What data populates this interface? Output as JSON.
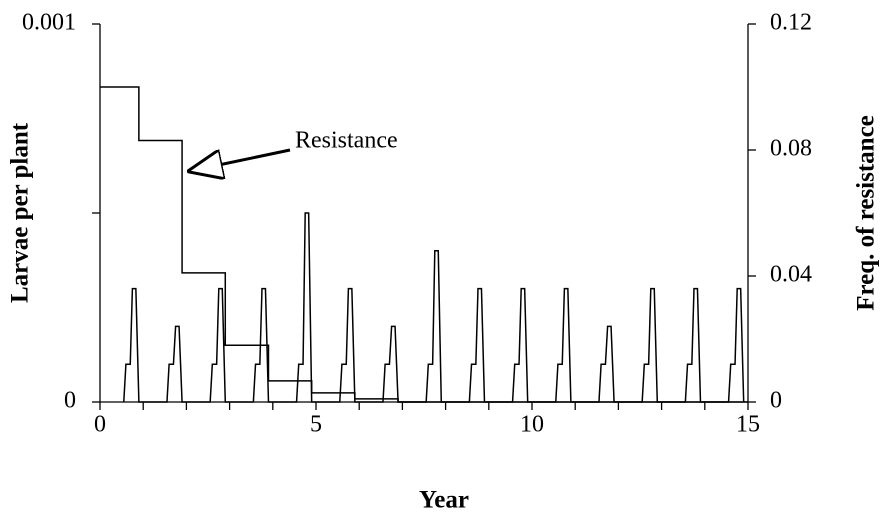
{
  "chart_data": {
    "type": "line",
    "xlabel": "Year",
    "ylabel": "Larvae per plant",
    "y2label": "Freq. of resistance",
    "annotation": "Resistance",
    "xlim": [
      0,
      15
    ],
    "xticks": [
      0,
      5,
      10,
      15
    ],
    "xminorticks": [
      1,
      2,
      3,
      4,
      6,
      7,
      8,
      9,
      11,
      12,
      13,
      14
    ],
    "ylim": [
      0,
      0.001
    ],
    "yticks": [
      0,
      0.001
    ],
    "yminorticks": [
      0.0005
    ],
    "y2lim": [
      0,
      0.12
    ],
    "y2ticks": [
      0,
      0.04,
      0.08,
      0.12
    ],
    "series": [
      {
        "color": "#000000",
        "axis": "y",
        "x": [
          0.55,
          0.6,
          0.7,
          0.75,
          0.83,
          0.9,
          1.55,
          1.6,
          1.7,
          1.75,
          1.83,
          1.9,
          2.55,
          2.6,
          2.7,
          2.75,
          2.83,
          2.9,
          3.55,
          3.6,
          3.7,
          3.75,
          3.83,
          3.9,
          4.55,
          4.6,
          4.7,
          4.75,
          4.83,
          4.9,
          5.55,
          5.6,
          5.7,
          5.75,
          5.83,
          5.9,
          6.55,
          6.6,
          6.7,
          6.75,
          6.83,
          6.9,
          7.55,
          7.6,
          7.7,
          7.75,
          7.83,
          7.9,
          8.55,
          8.6,
          8.7,
          8.75,
          8.83,
          8.9,
          9.55,
          9.6,
          9.7,
          9.75,
          9.83,
          9.9,
          10.55,
          10.6,
          10.7,
          10.75,
          10.83,
          10.9,
          11.55,
          11.6,
          11.7,
          11.75,
          11.83,
          11.9,
          12.55,
          12.6,
          12.7,
          12.75,
          12.83,
          12.9,
          13.55,
          13.6,
          13.7,
          13.75,
          13.83,
          13.9,
          14.55,
          14.6,
          14.7,
          14.75,
          14.83,
          14.9
        ],
        "values": [
          0,
          0.0001,
          0.0001,
          0.0003,
          0.0003,
          0,
          0,
          0.0001,
          0.0001,
          0.0002,
          0.0002,
          0,
          0,
          0.0001,
          0.0001,
          0.0003,
          0.0003,
          0,
          0,
          0.0001,
          0.0001,
          0.0003,
          0.0003,
          0,
          0,
          0.0001,
          0.0001,
          0.0005,
          0.0005,
          0,
          0,
          0.0001,
          0.0001,
          0.0003,
          0.0003,
          0,
          0,
          0.0001,
          0.0001,
          0.0002,
          0.0002,
          0,
          0,
          0.0001,
          0.0001,
          0.0004,
          0.0004,
          0,
          0,
          0.0001,
          0.0001,
          0.0003,
          0.0003,
          0,
          0,
          0.0001,
          0.0001,
          0.0003,
          0.0003,
          0,
          0,
          0.0001,
          0.0001,
          0.0003,
          0.0003,
          0,
          0,
          0.0001,
          0.0001,
          0.0002,
          0.0002,
          0,
          0,
          0.0001,
          0.0001,
          0.0003,
          0.0003,
          0,
          0,
          0.0001,
          0.0001,
          0.0003,
          0.0003,
          0,
          0,
          0.0001,
          0.0001,
          0.0003,
          0.0003,
          0
        ]
      },
      {
        "color": "#000000",
        "axis": "y2",
        "x": [
          0,
          0.9,
          0.9,
          1.9,
          1.9,
          2.9,
          2.9,
          3.9,
          3.9,
          4.9,
          4.9,
          5.9,
          5.9,
          6.9,
          6.9,
          15
        ],
        "values": [
          0.1,
          0.1,
          0.083,
          0.083,
          0.041,
          0.041,
          0.018,
          0.018,
          0.0067,
          0.0067,
          0.0029,
          0.0029,
          0.001,
          0.001,
          0,
          0
        ]
      }
    ]
  }
}
